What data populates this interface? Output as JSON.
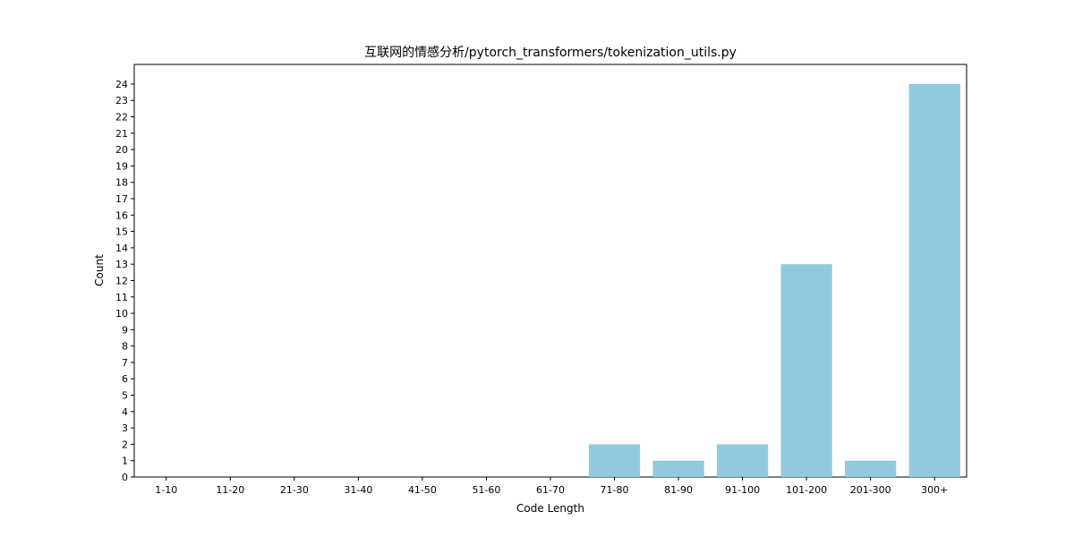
{
  "chart_data": {
    "type": "bar",
    "title": "互联网的情感分析/pytorch_transformers/tokenization_utils.py",
    "xlabel": "Code Length",
    "ylabel": "Count",
    "categories": [
      "1-10",
      "11-20",
      "21-30",
      "31-40",
      "41-50",
      "51-60",
      "61-70",
      "71-80",
      "81-90",
      "91-100",
      "101-200",
      "201-300",
      "300+"
    ],
    "values": [
      0,
      0,
      0,
      0,
      0,
      0,
      0,
      2,
      1,
      2,
      13,
      1,
      24
    ],
    "ylim": [
      0,
      25.2
    ],
    "yticks": [
      0,
      1,
      2,
      3,
      4,
      5,
      6,
      7,
      8,
      9,
      10,
      11,
      12,
      13,
      14,
      15,
      16,
      17,
      18,
      19,
      20,
      21,
      22,
      23,
      24
    ],
    "bar_color": "#92c9de",
    "grid": false,
    "legend": "none"
  }
}
